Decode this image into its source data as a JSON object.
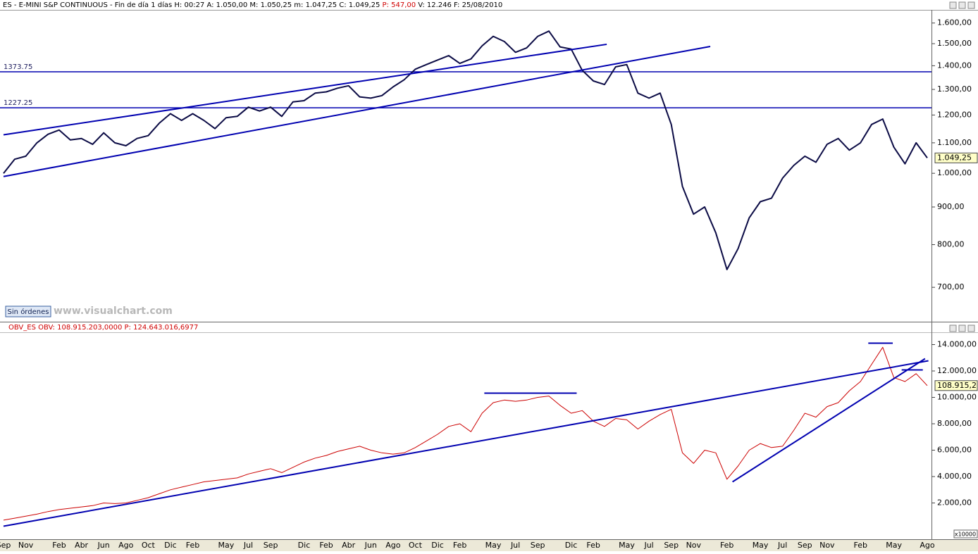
{
  "chart_data": [
    {
      "type": "line",
      "log_scale": true,
      "title": "ES - E-MINI S&P CONTINUOUS - Fin de día 1 días H: 00:27 A: 1.050,00 M: 1.050,25 m: 1.047,25 C: 1.049,25",
      "title_highlight": "P: 547,00",
      "title_tail": "V: 12.246 F: 25/08/2010",
      "series": [
        {
          "color": "#0b0b45",
          "values": [
            1000,
            1045,
            1055,
            1100,
            1130,
            1145,
            1110,
            1115,
            1095,
            1135,
            1100,
            1090,
            1115,
            1125,
            1170,
            1205,
            1180,
            1205,
            1180,
            1150,
            1190,
            1195,
            1230,
            1215,
            1230,
            1195,
            1250,
            1255,
            1285,
            1290,
            1305,
            1315,
            1270,
            1265,
            1275,
            1310,
            1340,
            1385,
            1405,
            1425,
            1445,
            1410,
            1430,
            1490,
            1535,
            1510,
            1460,
            1480,
            1535,
            1560,
            1485,
            1475,
            1380,
            1335,
            1320,
            1395,
            1405,
            1285,
            1265,
            1285,
            1165,
            960,
            880,
            900,
            830,
            740,
            790,
            870,
            915,
            925,
            985,
            1025,
            1055,
            1035,
            1095,
            1115,
            1075,
            1100,
            1165,
            1185,
            1085,
            1030,
            1100,
            1049.25
          ]
        }
      ],
      "current": {
        "value": 1049.25,
        "label": "1.049,25"
      },
      "hlines": [
        1373.75,
        1227.25
      ],
      "line_color": "#0000b0",
      "trendlines": [
        {
          "x": [
            0,
            63.5
          ],
          "y": [
            990,
            1487
          ]
        },
        {
          "x": [
            0,
            54.2
          ],
          "y": [
            1128,
            1497
          ]
        }
      ],
      "ylim": [
        630,
        1660
      ],
      "yticks": [
        {
          "value": 700,
          "label": "700,00"
        },
        {
          "value": 800,
          "label": "800,00"
        },
        {
          "value": 900,
          "label": "900,00"
        },
        {
          "value": 1000,
          "label": "1.000,00"
        },
        {
          "value": 1100,
          "label": "1.100,00"
        },
        {
          "value": 1200,
          "label": "1.200,00"
        },
        {
          "value": 1300,
          "label": "1.300,00"
        },
        {
          "value": 1400,
          "label": "1.400,00"
        },
        {
          "value": 1500,
          "label": "1.500,00"
        },
        {
          "value": 1600,
          "label": "1.600,00"
        }
      ]
    },
    {
      "type": "line",
      "log_scale": false,
      "title": "OBV_ES OBV: 108.915.203,0000 P: 124.643.016,6977",
      "categories": [
        "Sep",
        null,
        "Nov",
        null,
        null,
        "Feb",
        null,
        "Abr",
        null,
        "Jun",
        null,
        "Ago",
        null,
        "Oct",
        null,
        "Dic",
        null,
        "Feb",
        null,
        null,
        "May",
        null,
        "Jul",
        null,
        "Sep",
        null,
        null,
        "Dic",
        null,
        "Feb",
        null,
        "Abr",
        null,
        "Jun",
        null,
        "Ago",
        null,
        "Oct",
        null,
        "Dic",
        null,
        "Feb",
        null,
        null,
        "May",
        null,
        "Jul",
        null,
        "Sep",
        null,
        null,
        "Dic",
        null,
        "Feb",
        null,
        null,
        "May",
        null,
        "Jul",
        null,
        "Sep",
        null,
        "Nov",
        null,
        null,
        "Feb",
        null,
        null,
        "May",
        null,
        "Jul",
        null,
        "Sep",
        null,
        "Nov",
        null,
        null,
        "Feb",
        null,
        null,
        "May",
        null,
        null,
        "Ago"
      ],
      "series": [
        {
          "color": "#cc0000",
          "values": [
            700,
            850,
            1000,
            1150,
            1350,
            1500,
            1600,
            1700,
            1800,
            2000,
            1950,
            2000,
            2200,
            2400,
            2700,
            3000,
            3200,
            3400,
            3600,
            3700,
            3800,
            3900,
            4200,
            4400,
            4600,
            4300,
            4700,
            5100,
            5400,
            5600,
            5900,
            6100,
            6300,
            6000,
            5800,
            5700,
            5800,
            6200,
            6700,
            7200,
            7800,
            8000,
            7400,
            8800,
            9600,
            9800,
            9700,
            9800,
            10000,
            10100,
            9400,
            8800,
            9000,
            8200,
            7800,
            8400,
            8300,
            7600,
            8200,
            8700,
            9100,
            5800,
            5000,
            6000,
            5800,
            3800,
            4800,
            6000,
            6500,
            6200,
            6300,
            7500,
            8800,
            8500,
            9300,
            9600,
            10500,
            11200,
            12500,
            13800,
            11500,
            11200,
            11800,
            10891.52
          ]
        }
      ],
      "current": {
        "value": 10891.52,
        "label": "108.915,2"
      },
      "line_color": "#0000b0",
      "trendlines": [
        {
          "x": [
            0,
            83.1
          ],
          "y": [
            240,
            12773
          ]
        },
        {
          "x": [
            65.5,
            82.8
          ],
          "y": [
            3600,
            12933
          ]
        },
        {
          "x": [
            43.2,
            51.5
          ],
          "y": [
            10320,
            10320
          ]
        },
        {
          "x": [
            77.7,
            79.9
          ],
          "y": [
            14107,
            14107
          ]
        },
        {
          "x": [
            80.7,
            82.6
          ],
          "y": [
            12080,
            12080
          ]
        }
      ],
      "ylim": [
        0,
        15200
      ],
      "yticks": [
        {
          "value": 2000,
          "label": "2.000,00"
        },
        {
          "value": 4000,
          "label": "4.000,00"
        },
        {
          "value": 6000,
          "label": "6.000,00"
        },
        {
          "value": 8000,
          "label": "8.000,00"
        },
        {
          "value": 10000,
          "label": "10.000,00"
        },
        {
          "value": 12000,
          "label": "12.000,00"
        },
        {
          "value": 14000,
          "label": "14.000,00"
        }
      ],
      "scale_note": "x10000"
    }
  ],
  "ui": {
    "button": "Sin órdenes",
    "watermark": "www.visualchart.com"
  }
}
